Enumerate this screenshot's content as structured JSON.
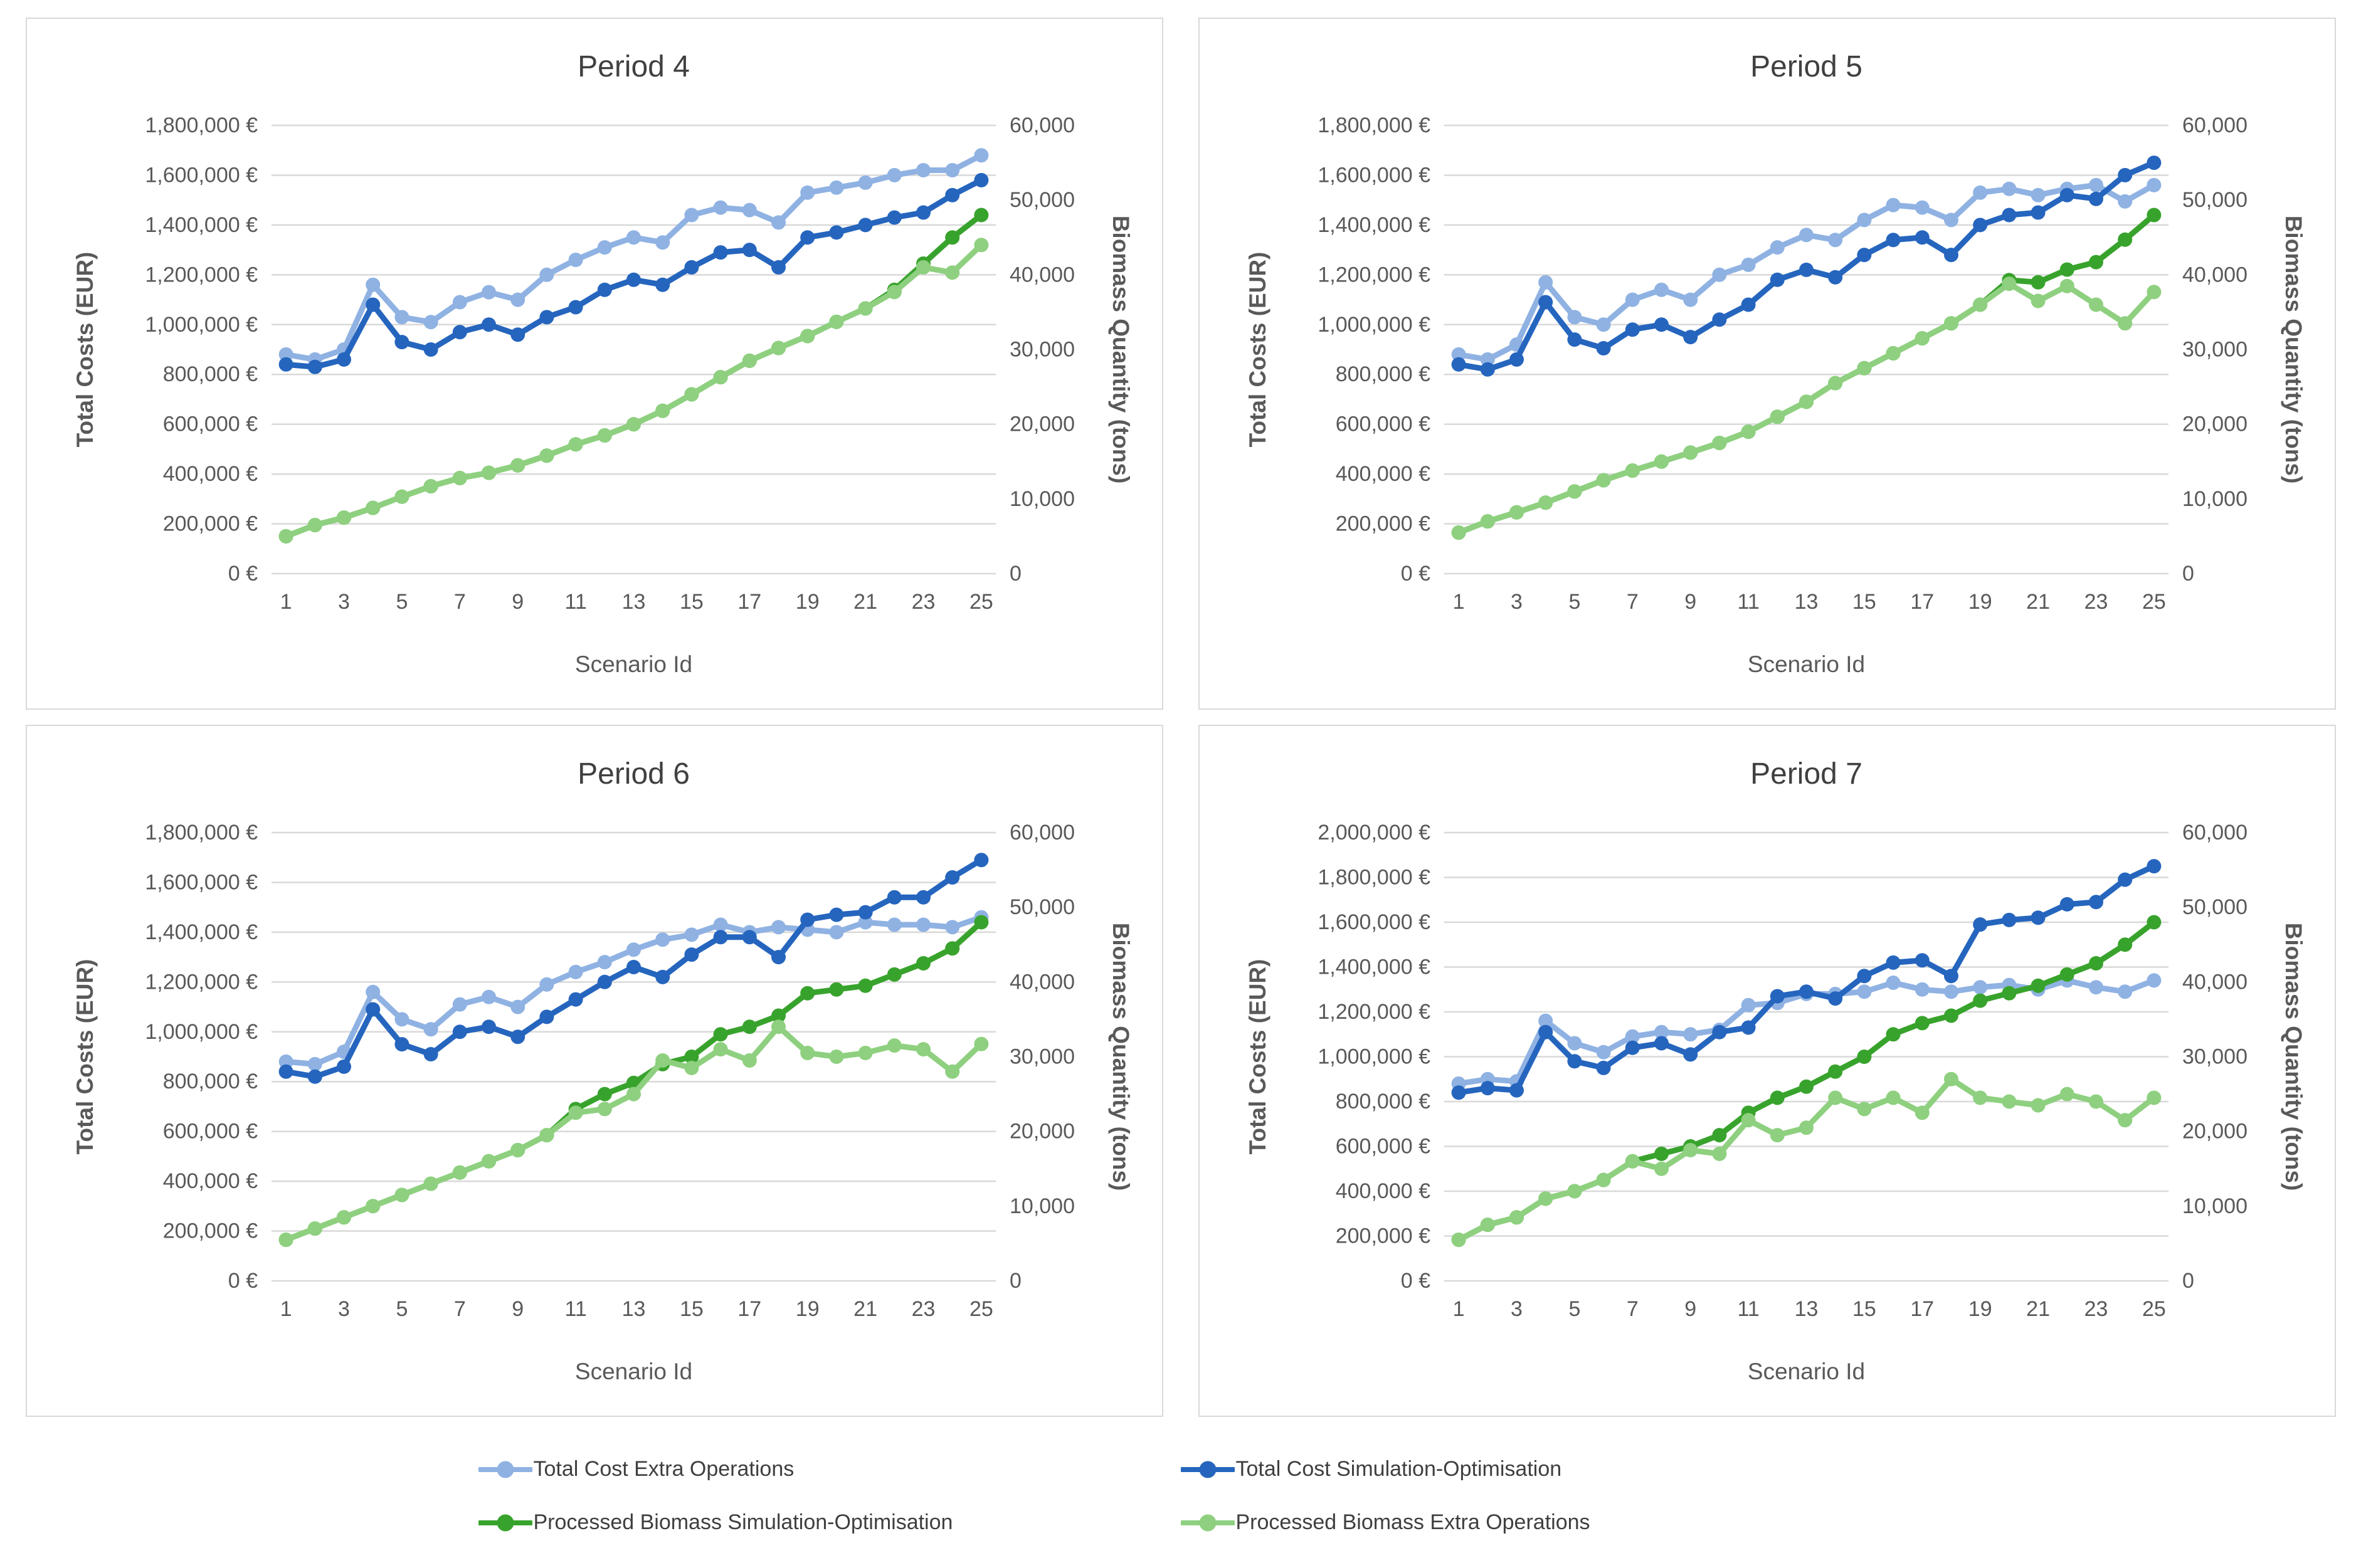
{
  "page": {
    "background": "#ffffff",
    "text_color": "#595959",
    "title_color": "#404040",
    "gridline_color": "#d9d9d9",
    "panel_border_color": "#d9d9d9"
  },
  "legend": {
    "items": [
      {
        "label": "Total Cost Extra Operations",
        "color": "#8fb2e3",
        "marker": "line-circle"
      },
      {
        "label": "Total Cost Simulation-Optimisation",
        "color": "#2565be",
        "marker": "line-circle"
      },
      {
        "label": "Processed Biomass Simulation-Optimisation",
        "color": "#38a32c",
        "marker": "line-circle"
      },
      {
        "label": "Processed Biomass Extra Operations",
        "color": "#8ed07f",
        "marker": "line-circle"
      }
    ]
  },
  "chart_data": [
    {
      "id": "period-4",
      "type": "line",
      "title": "Period 4",
      "xlabel": "Scenario Id",
      "ylabel_left": "Total Costs (EUR)",
      "ylabel_right": "Biomass Quantity (tons)",
      "x": [
        1,
        2,
        3,
        4,
        5,
        6,
        7,
        8,
        9,
        10,
        11,
        12,
        13,
        14,
        15,
        16,
        17,
        18,
        19,
        20,
        21,
        22,
        23,
        24,
        25
      ],
      "x_tick_labels": [
        "1",
        "3",
        "5",
        "7",
        "9",
        "11",
        "13",
        "15",
        "17",
        "19",
        "21",
        "23",
        "25"
      ],
      "ylim_left": [
        0,
        1800000
      ],
      "ylim_right": [
        0,
        60000
      ],
      "left_tick_labels": [
        "1,800,000 €",
        "1,600,000 €",
        "1,400,000 €",
        "1,200,000 €",
        "1,000,000 €",
        "800,000 €",
        "600,000 €",
        "400,000 €",
        "200,000 €",
        "0 €"
      ],
      "right_tick_labels": [
        "60,000",
        "50,000",
        "40,000",
        "30,000",
        "20,000",
        "10,000",
        "0"
      ],
      "grid": true,
      "series": [
        {
          "name": "Total Cost Extra Operations",
          "axis": "left",
          "color": "#8fb2e3",
          "values": [
            880000,
            860000,
            900000,
            1160000,
            1030000,
            1010000,
            1090000,
            1130000,
            1100000,
            1200000,
            1260000,
            1310000,
            1350000,
            1330000,
            1440000,
            1470000,
            1460000,
            1410000,
            1530000,
            1550000,
            1570000,
            1600000,
            1620000,
            1620000,
            1680000
          ]
        },
        {
          "name": "Total Cost Simulation-Optimisation",
          "axis": "left",
          "color": "#2565be",
          "values": [
            840000,
            830000,
            860000,
            1080000,
            930000,
            900000,
            970000,
            1000000,
            960000,
            1030000,
            1070000,
            1140000,
            1180000,
            1160000,
            1230000,
            1290000,
            1300000,
            1230000,
            1350000,
            1370000,
            1400000,
            1430000,
            1450000,
            1520000,
            1580000
          ]
        },
        {
          "name": "Processed Biomass Simulation-Optimisation",
          "axis": "right",
          "color": "#38a32c",
          "values": [
            5000,
            6500,
            7500,
            8800,
            10300,
            11700,
            12800,
            13500,
            14500,
            15800,
            17300,
            18500,
            20000,
            21800,
            24000,
            26300,
            28500,
            30200,
            31800,
            33700,
            35500,
            38000,
            41500,
            45000,
            48000
          ]
        },
        {
          "name": "Processed Biomass Extra Operations",
          "axis": "right",
          "color": "#8ed07f",
          "values": [
            5000,
            6500,
            7500,
            8800,
            10300,
            11700,
            12800,
            13500,
            14500,
            15800,
            17300,
            18500,
            20000,
            21800,
            24000,
            26300,
            28500,
            30200,
            31800,
            33700,
            35500,
            37700,
            41000,
            40300,
            44000
          ]
        }
      ]
    },
    {
      "id": "period-5",
      "type": "line",
      "title": "Period 5",
      "xlabel": "Scenario Id",
      "ylabel_left": "Total Costs (EUR)",
      "ylabel_right": "Biomass Quantity (tons)",
      "x": [
        1,
        2,
        3,
        4,
        5,
        6,
        7,
        8,
        9,
        10,
        11,
        12,
        13,
        14,
        15,
        16,
        17,
        18,
        19,
        20,
        21,
        22,
        23,
        24,
        25
      ],
      "x_tick_labels": [
        "1",
        "3",
        "5",
        "7",
        "9",
        "11",
        "13",
        "15",
        "17",
        "19",
        "21",
        "23",
        "25"
      ],
      "ylim_left": [
        0,
        1800000
      ],
      "ylim_right": [
        0,
        60000
      ],
      "left_tick_labels": [
        "1,800,000 €",
        "1,600,000 €",
        "1,400,000 €",
        "1,200,000 €",
        "1,000,000 €",
        "800,000 €",
        "600,000 €",
        "400,000 €",
        "200,000 €",
        "0 €"
      ],
      "right_tick_labels": [
        "60,000",
        "50,000",
        "40,000",
        "30,000",
        "20,000",
        "10,000",
        "0"
      ],
      "grid": true,
      "series": [
        {
          "name": "Total Cost Extra Operations",
          "axis": "left",
          "color": "#8fb2e3",
          "values": [
            880000,
            860000,
            920000,
            1170000,
            1030000,
            1000000,
            1100000,
            1140000,
            1100000,
            1200000,
            1240000,
            1310000,
            1360000,
            1340000,
            1420000,
            1480000,
            1470000,
            1420000,
            1530000,
            1545000,
            1520000,
            1545000,
            1560000,
            1495000,
            1560000
          ]
        },
        {
          "name": "Total Cost Simulation-Optimisation",
          "axis": "left",
          "color": "#2565be",
          "values": [
            840000,
            820000,
            860000,
            1090000,
            940000,
            905000,
            980000,
            1000000,
            950000,
            1020000,
            1080000,
            1180000,
            1220000,
            1190000,
            1280000,
            1340000,
            1350000,
            1280000,
            1400000,
            1440000,
            1450000,
            1520000,
            1505000,
            1600000,
            1650000
          ]
        },
        {
          "name": "Processed Biomass Simulation-Optimisation",
          "axis": "right",
          "color": "#38a32c",
          "values": [
            5500,
            7000,
            8200,
            9500,
            11000,
            12500,
            13800,
            15000,
            16200,
            17500,
            19000,
            21000,
            23000,
            25500,
            27500,
            29500,
            31500,
            33500,
            36000,
            39300,
            39000,
            40700,
            41700,
            44700,
            48000
          ]
        },
        {
          "name": "Processed Biomass Extra Operations",
          "axis": "right",
          "color": "#8ed07f",
          "values": [
            5500,
            7000,
            8200,
            9500,
            11000,
            12500,
            13800,
            15000,
            16200,
            17500,
            19000,
            21000,
            23000,
            25500,
            27500,
            29500,
            31500,
            33500,
            36000,
            38800,
            36500,
            38500,
            36000,
            33500,
            37700
          ]
        }
      ]
    },
    {
      "id": "period-6",
      "type": "line",
      "title": "Period 6",
      "xlabel": "Scenario Id",
      "ylabel_left": "Total Costs (EUR)",
      "ylabel_right": "Biomass Quantity (tons)",
      "x": [
        1,
        2,
        3,
        4,
        5,
        6,
        7,
        8,
        9,
        10,
        11,
        12,
        13,
        14,
        15,
        16,
        17,
        18,
        19,
        20,
        21,
        22,
        23,
        24,
        25
      ],
      "x_tick_labels": [
        "1",
        "3",
        "5",
        "7",
        "9",
        "11",
        "13",
        "15",
        "17",
        "19",
        "21",
        "23",
        "25"
      ],
      "ylim_left": [
        0,
        1800000
      ],
      "ylim_right": [
        0,
        60000
      ],
      "left_tick_labels": [
        "1,800,000 €",
        "1,600,000 €",
        "1,400,000 €",
        "1,200,000 €",
        "1,000,000 €",
        "800,000 €",
        "600,000 €",
        "400,000 €",
        "200,000 €",
        "0 €"
      ],
      "right_tick_labels": [
        "60,000",
        "50,000",
        "40,000",
        "30,000",
        "20,000",
        "10,000",
        "0"
      ],
      "grid": true,
      "series": [
        {
          "name": "Total Cost Extra Operations",
          "axis": "left",
          "color": "#8fb2e3",
          "values": [
            880000,
            870000,
            920000,
            1160000,
            1050000,
            1010000,
            1110000,
            1140000,
            1100000,
            1190000,
            1240000,
            1280000,
            1330000,
            1370000,
            1390000,
            1430000,
            1400000,
            1420000,
            1410000,
            1400000,
            1440000,
            1430000,
            1430000,
            1420000,
            1460000
          ]
        },
        {
          "name": "Total Cost Simulation-Optimisation",
          "axis": "left",
          "color": "#2565be",
          "values": [
            840000,
            820000,
            860000,
            1090000,
            950000,
            910000,
            1000000,
            1020000,
            980000,
            1060000,
            1130000,
            1200000,
            1260000,
            1220000,
            1310000,
            1380000,
            1380000,
            1300000,
            1450000,
            1470000,
            1480000,
            1540000,
            1540000,
            1620000,
            1690000
          ]
        },
        {
          "name": "Processed Biomass Simulation-Optimisation",
          "axis": "right",
          "color": "#38a32c",
          "values": [
            5500,
            7000,
            8500,
            10000,
            11500,
            13000,
            14500,
            16000,
            17500,
            19500,
            23000,
            25000,
            26500,
            29000,
            30000,
            33000,
            34000,
            35500,
            38500,
            39000,
            39500,
            41000,
            42500,
            44500,
            48000
          ]
        },
        {
          "name": "Processed Biomass Extra Operations",
          "axis": "right",
          "color": "#8ed07f",
          "values": [
            5500,
            7000,
            8500,
            10000,
            11500,
            13000,
            14500,
            16000,
            17500,
            19500,
            22500,
            23000,
            25000,
            29500,
            28500,
            31000,
            29500,
            34000,
            30500,
            30000,
            30500,
            31500,
            31000,
            28000,
            31700
          ]
        }
      ]
    },
    {
      "id": "period-7",
      "type": "line",
      "title": "Period 7",
      "xlabel": "Scenario Id",
      "ylabel_left": "Total Costs (EUR)",
      "ylabel_right": "Biomass Quantity (tons)",
      "x": [
        1,
        2,
        3,
        4,
        5,
        6,
        7,
        8,
        9,
        10,
        11,
        12,
        13,
        14,
        15,
        16,
        17,
        18,
        19,
        20,
        21,
        22,
        23,
        24,
        25
      ],
      "x_tick_labels": [
        "1",
        "3",
        "5",
        "7",
        "9",
        "11",
        "13",
        "15",
        "17",
        "19",
        "21",
        "23",
        "25"
      ],
      "ylim_left": [
        0,
        2000000
      ],
      "ylim_right": [
        0,
        60000
      ],
      "left_tick_labels": [
        "2,000,000 €",
        "1,800,000 €",
        "1,600,000 €",
        "1,400,000 €",
        "1,200,000 €",
        "1,000,000 €",
        "800,000 €",
        "600,000 €",
        "400,000 €",
        "200,000 €",
        "0 €"
      ],
      "right_tick_labels": [
        "60,000",
        "50,000",
        "40,000",
        "30,000",
        "20,000",
        "10,000",
        "0"
      ],
      "grid": true,
      "series": [
        {
          "name": "Total Cost Extra Operations",
          "axis": "left",
          "color": "#8fb2e3",
          "values": [
            880000,
            900000,
            890000,
            1160000,
            1060000,
            1020000,
            1090000,
            1110000,
            1100000,
            1120000,
            1230000,
            1240000,
            1280000,
            1280000,
            1290000,
            1330000,
            1300000,
            1290000,
            1310000,
            1320000,
            1300000,
            1340000,
            1310000,
            1290000,
            1340000
          ]
        },
        {
          "name": "Total Cost Simulation-Optimisation",
          "axis": "left",
          "color": "#2565be",
          "values": [
            840000,
            860000,
            850000,
            1110000,
            980000,
            950000,
            1040000,
            1060000,
            1010000,
            1110000,
            1130000,
            1270000,
            1290000,
            1260000,
            1360000,
            1420000,
            1430000,
            1360000,
            1590000,
            1610000,
            1620000,
            1680000,
            1690000,
            1790000,
            1850000
          ]
        },
        {
          "name": "Processed Biomass Simulation-Optimisation",
          "axis": "right",
          "color": "#38a32c",
          "values": [
            5500,
            7500,
            8500,
            11000,
            12000,
            13500,
            16000,
            17000,
            18000,
            19500,
            22500,
            24500,
            26000,
            28000,
            30000,
            33000,
            34500,
            35500,
            37500,
            38500,
            39500,
            41000,
            42500,
            45000,
            48000
          ]
        },
        {
          "name": "Processed Biomass Extra Operations",
          "axis": "right",
          "color": "#8ed07f",
          "values": [
            5500,
            7500,
            8500,
            11000,
            12000,
            13500,
            16000,
            15000,
            17500,
            17000,
            21500,
            19500,
            20500,
            24500,
            23000,
            24500,
            22500,
            27000,
            24500,
            24000,
            23500,
            25000,
            24000,
            21500,
            24500
          ]
        }
      ]
    }
  ]
}
